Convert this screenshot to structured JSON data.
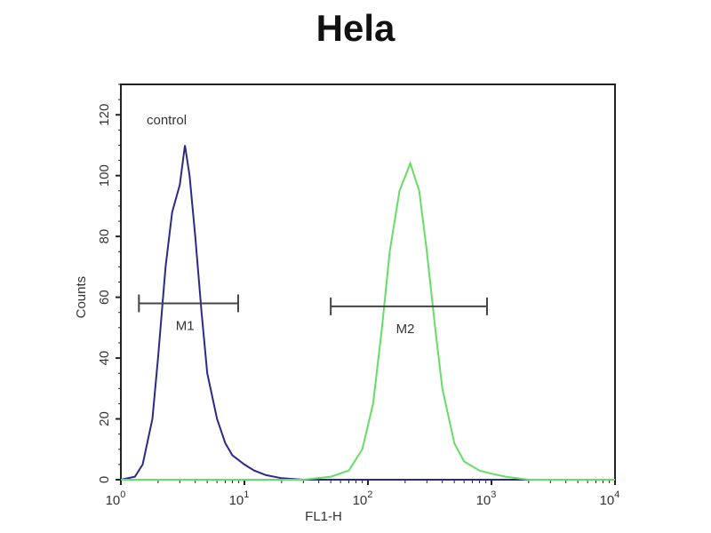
{
  "chart_data": {
    "type": "line",
    "title": "Hela",
    "xlabel": "FL1-H",
    "ylabel": "Counts",
    "x_scale": "log",
    "xlim": [
      1,
      10000
    ],
    "ylim": [
      0,
      130
    ],
    "x_ticks": [
      {
        "value": 1,
        "base": "10",
        "exp": "0"
      },
      {
        "value": 10,
        "base": "10",
        "exp": "1"
      },
      {
        "value": 100,
        "base": "10",
        "exp": "2"
      },
      {
        "value": 1000,
        "base": "10",
        "exp": "3"
      },
      {
        "value": 10000,
        "base": "10",
        "exp": "4"
      }
    ],
    "y_ticks": [
      0,
      20,
      40,
      60,
      80,
      100,
      120
    ],
    "annotations": [
      {
        "text": "control"
      }
    ],
    "gates": [
      {
        "label": "M1",
        "from": 1.4,
        "to": 8.9,
        "y": 58
      },
      {
        "label": "M2",
        "from": 50,
        "to": 920,
        "y": 57
      }
    ],
    "series": [
      {
        "color": "#2a2a8a",
        "x": [
          1,
          1.3,
          1.5,
          1.8,
          2.0,
          2.3,
          2.6,
          3.0,
          3.3,
          3.6,
          4.0,
          4.5,
          5,
          6,
          7,
          8,
          10,
          12,
          15,
          20,
          30,
          10000
        ],
        "y": [
          0,
          1,
          5,
          20,
          40,
          70,
          88,
          97,
          110,
          100,
          80,
          55,
          35,
          20,
          12,
          8,
          5,
          3,
          1.5,
          0.5,
          0,
          0
        ]
      },
      {
        "color": "#66dd66",
        "x": [
          1,
          30,
          50,
          70,
          90,
          110,
          130,
          150,
          180,
          220,
          260,
          300,
          350,
          400,
          500,
          600,
          800,
          1000,
          1300,
          2000,
          10000
        ],
        "y": [
          0,
          0,
          1,
          3,
          10,
          25,
          50,
          75,
          95,
          104,
          95,
          75,
          50,
          30,
          12,
          6,
          3,
          2,
          1,
          0,
          0
        ]
      }
    ]
  }
}
